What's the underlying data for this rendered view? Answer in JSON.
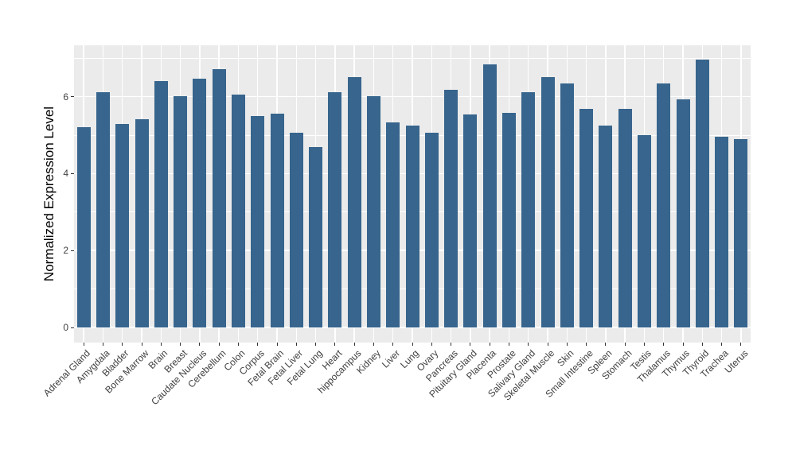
{
  "chart_data": {
    "type": "bar",
    "title": "",
    "xlabel": "",
    "ylabel": "Normalized Expression Level",
    "legend": "none",
    "grid": "white major/minor horizontal lines and white vertical lines at category centers on grey panel",
    "panel_bg": "#EBEBEB",
    "bar_color": "#37658D",
    "ylim": [
      0,
      7.33
    ],
    "yticks_major": [
      0,
      2,
      4,
      6
    ],
    "ytick_labels": [
      "0",
      "2",
      "4",
      "6"
    ],
    "yticks_minor": [
      1,
      3,
      5,
      7
    ],
    "categories": [
      "Adrenal Gland",
      "Amygdala",
      "Bladder",
      "Bone Marrow",
      "Brain",
      "Breast",
      "Caudate Nucleus",
      "Cerebellum",
      "Colon",
      "Corpus",
      "Fetal Brain",
      "Fetal Liver",
      "Fetal Lung",
      "Heart",
      "hippocampus",
      "Kidney",
      "Liver",
      "Lung",
      "Ovary",
      "Pancreas",
      "Pituitary Gland",
      "Placenta",
      "Prostate",
      "Salivary Gland",
      "Skeletal Muscle",
      "Skin",
      "Small Intestine",
      "Spleen",
      "Stomach",
      "Testis",
      "Thalamus",
      "Thymus",
      "Thyroid",
      "Trachea",
      "Uterus"
    ],
    "values": [
      5.2,
      6.12,
      5.28,
      5.41,
      6.4,
      6.01,
      6.47,
      6.71,
      6.05,
      5.5,
      5.55,
      5.06,
      4.68,
      6.12,
      6.51,
      6.01,
      5.33,
      5.24,
      5.06,
      6.17,
      5.54,
      6.84,
      5.57,
      6.11,
      6.5,
      6.35,
      5.68,
      5.25,
      5.68,
      5.01,
      6.35,
      5.93,
      6.96,
      4.95,
      4.9
    ]
  }
}
